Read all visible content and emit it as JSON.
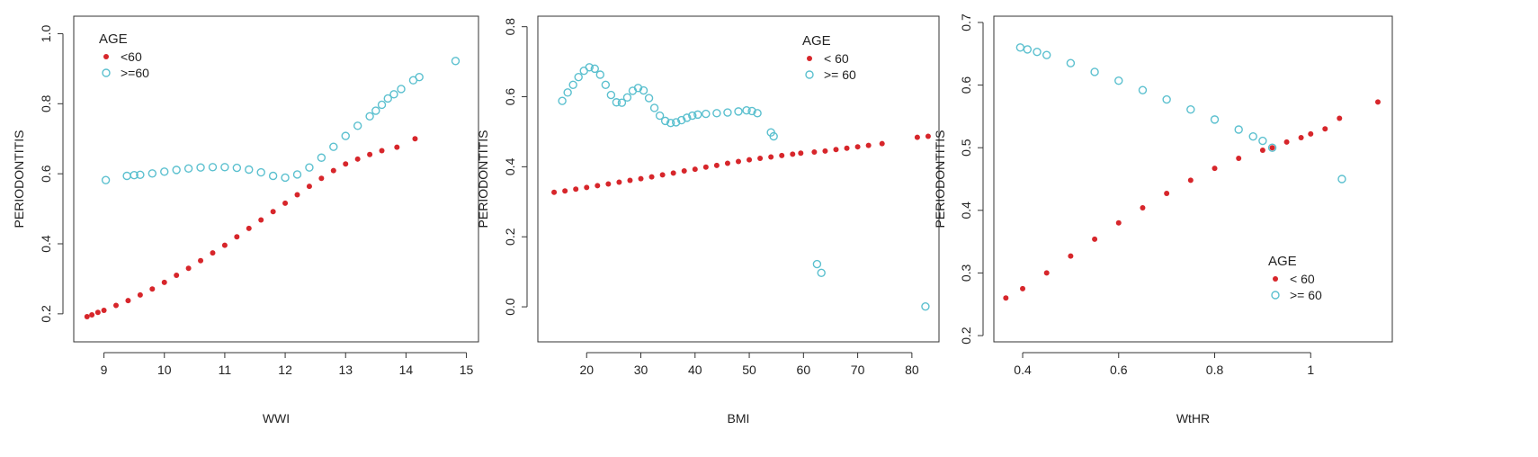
{
  "colors": {
    "under_60": "#d7262b",
    "over_60": "#5bc0cf",
    "axis": "#333333"
  },
  "chart_data": [
    {
      "type": "scatter",
      "xlabel": "WWI",
      "ylabel": "PERIODONTITIS",
      "xlim": [
        8.5,
        15.2
      ],
      "ylim": [
        0.12,
        1.05
      ],
      "xticks": [
        9,
        10,
        11,
        12,
        13,
        14,
        15
      ],
      "yticks": [
        0.2,
        0.4,
        0.6,
        0.8,
        1.0
      ],
      "ytick_labels": [
        "0.2",
        "0.4",
        "0.6",
        "0.8",
        "1.0"
      ],
      "legend": {
        "title": "AGE",
        "position": "top-left",
        "entries": [
          {
            "label": "<60",
            "marker": "filled",
            "series": 0
          },
          {
            "label": ">=60",
            "marker": "open",
            "series": 1
          }
        ]
      },
      "series": [
        {
          "marker": "filled",
          "color": "#d7262b",
          "points": [
            [
              8.72,
              0.192
            ],
            [
              8.8,
              0.197
            ],
            [
              8.9,
              0.204
            ],
            [
              9.0,
              0.21
            ],
            [
              9.2,
              0.224
            ],
            [
              9.4,
              0.238
            ],
            [
              9.6,
              0.254
            ],
            [
              9.8,
              0.271
            ],
            [
              10.0,
              0.29
            ],
            [
              10.2,
              0.31
            ],
            [
              10.4,
              0.33
            ],
            [
              10.6,
              0.352
            ],
            [
              10.8,
              0.374
            ],
            [
              11.0,
              0.396
            ],
            [
              11.2,
              0.42
            ],
            [
              11.4,
              0.444
            ],
            [
              11.6,
              0.468
            ],
            [
              11.8,
              0.492
            ],
            [
              12.0,
              0.516
            ],
            [
              12.2,
              0.54
            ],
            [
              12.4,
              0.564
            ],
            [
              12.6,
              0.587
            ],
            [
              12.8,
              0.609
            ],
            [
              13.0,
              0.628
            ],
            [
              13.2,
              0.642
            ],
            [
              13.4,
              0.655
            ],
            [
              13.6,
              0.666
            ],
            [
              13.85,
              0.676
            ],
            [
              14.15,
              0.7
            ]
          ]
        },
        {
          "marker": "open",
          "color": "#5bc0cf",
          "points": [
            [
              9.03,
              0.582
            ],
            [
              9.38,
              0.594
            ],
            [
              9.5,
              0.596
            ],
            [
              9.6,
              0.597
            ],
            [
              9.8,
              0.601
            ],
            [
              10.0,
              0.606
            ],
            [
              10.2,
              0.611
            ],
            [
              10.4,
              0.615
            ],
            [
              10.6,
              0.618
            ],
            [
              10.8,
              0.619
            ],
            [
              11.0,
              0.619
            ],
            [
              11.2,
              0.617
            ],
            [
              11.4,
              0.612
            ],
            [
              11.6,
              0.604
            ],
            [
              11.8,
              0.594
            ],
            [
              12.0,
              0.589
            ],
            [
              12.2,
              0.598
            ],
            [
              12.4,
              0.618
            ],
            [
              12.6,
              0.646
            ],
            [
              12.8,
              0.677
            ],
            [
              13.0,
              0.708
            ],
            [
              13.2,
              0.737
            ],
            [
              13.4,
              0.764
            ],
            [
              13.5,
              0.78
            ],
            [
              13.6,
              0.797
            ],
            [
              13.7,
              0.815
            ],
            [
              13.8,
              0.827
            ],
            [
              13.92,
              0.842
            ],
            [
              14.12,
              0.867
            ],
            [
              14.22,
              0.876
            ],
            [
              14.82,
              0.922
            ]
          ]
        }
      ]
    },
    {
      "type": "scatter",
      "xlabel": "BMI",
      "ylabel": "PERIODONTITIS",
      "xlim": [
        11,
        85
      ],
      "ylim": [
        -0.1,
        0.83
      ],
      "xticks": [
        20,
        30,
        40,
        50,
        60,
        70,
        80
      ],
      "yticks": [
        0.0,
        0.2,
        0.4,
        0.6,
        0.8
      ],
      "ytick_labels": [
        "0.0",
        "0.2",
        "0.4",
        "0.6",
        "0.8"
      ],
      "legend": {
        "title": "AGE",
        "position": "top-right",
        "entries": [
          {
            "label": "< 60",
            "marker": "filled",
            "series": 0
          },
          {
            "label": ">= 60",
            "marker": "open",
            "series": 1
          }
        ]
      },
      "series": [
        {
          "marker": "filled",
          "color": "#d7262b",
          "points": [
            [
              14,
              0.327
            ],
            [
              16,
              0.331
            ],
            [
              18,
              0.336
            ],
            [
              20,
              0.341
            ],
            [
              22,
              0.346
            ],
            [
              24,
              0.351
            ],
            [
              26,
              0.356
            ],
            [
              28,
              0.361
            ],
            [
              30,
              0.366
            ],
            [
              32,
              0.371
            ],
            [
              34,
              0.377
            ],
            [
              36,
              0.382
            ],
            [
              38,
              0.388
            ],
            [
              40,
              0.393
            ],
            [
              42,
              0.399
            ],
            [
              44,
              0.404
            ],
            [
              46,
              0.41
            ],
            [
              48,
              0.415
            ],
            [
              50,
              0.42
            ],
            [
              52,
              0.424
            ],
            [
              54,
              0.428
            ],
            [
              56,
              0.432
            ],
            [
              58,
              0.436
            ],
            [
              59.5,
              0.439
            ],
            [
              62,
              0.442
            ],
            [
              64,
              0.445
            ],
            [
              66,
              0.449
            ],
            [
              68,
              0.453
            ],
            [
              70,
              0.457
            ],
            [
              72,
              0.461
            ],
            [
              74.5,
              0.466
            ],
            [
              81,
              0.484
            ],
            [
              83,
              0.487
            ]
          ]
        },
        {
          "marker": "open",
          "color": "#5bc0cf",
          "points": [
            [
              15.5,
              0.588
            ],
            [
              16.5,
              0.612
            ],
            [
              17.5,
              0.634
            ],
            [
              18.5,
              0.656
            ],
            [
              19.5,
              0.674
            ],
            [
              20.5,
              0.684
            ],
            [
              21.5,
              0.68
            ],
            [
              22.5,
              0.663
            ],
            [
              23.5,
              0.634
            ],
            [
              24.5,
              0.605
            ],
            [
              25.5,
              0.584
            ],
            [
              26.5,
              0.583
            ],
            [
              27.5,
              0.598
            ],
            [
              28.5,
              0.617
            ],
            [
              29.5,
              0.625
            ],
            [
              30.5,
              0.618
            ],
            [
              31.5,
              0.596
            ],
            [
              32.5,
              0.568
            ],
            [
              33.5,
              0.546
            ],
            [
              34.5,
              0.531
            ],
            [
              35.5,
              0.525
            ],
            [
              36.5,
              0.527
            ],
            [
              37.5,
              0.533
            ],
            [
              38.5,
              0.54
            ],
            [
              39.5,
              0.546
            ],
            [
              40.5,
              0.549
            ],
            [
              42,
              0.551
            ],
            [
              44,
              0.553
            ],
            [
              46,
              0.555
            ],
            [
              48,
              0.558
            ],
            [
              49.5,
              0.561
            ],
            [
              50.5,
              0.559
            ],
            [
              51.5,
              0.553
            ],
            [
              54,
              0.498
            ],
            [
              54.5,
              0.487
            ],
            [
              62.5,
              0.122
            ],
            [
              63.3,
              0.097
            ],
            [
              82.5,
              0.001
            ]
          ]
        }
      ]
    },
    {
      "type": "scatter",
      "xlabel": "WtHR",
      "ylabel": "PERIODONTITIS",
      "xlim": [
        0.34,
        1.17
      ],
      "ylim": [
        0.19,
        0.71
      ],
      "xticks": [
        0.4,
        0.6,
        0.8,
        1.0
      ],
      "yticks": [
        0.2,
        0.3,
        0.4,
        0.5,
        0.6,
        0.7
      ],
      "ytick_labels": [
        "0.2",
        "0.3",
        "0.4",
        "0.5",
        "0.6",
        "0.7"
      ],
      "legend": {
        "title": "AGE",
        "position": "bottom-right",
        "entries": [
          {
            "label": "< 60",
            "marker": "filled",
            "series": 0
          },
          {
            "label": ">= 60",
            "marker": "open",
            "series": 1
          }
        ]
      },
      "series": [
        {
          "marker": "filled",
          "color": "#d7262b",
          "points": [
            [
              0.365,
              0.26
            ],
            [
              0.4,
              0.275
            ],
            [
              0.45,
              0.3
            ],
            [
              0.5,
              0.327
            ],
            [
              0.55,
              0.354
            ],
            [
              0.6,
              0.38
            ],
            [
              0.65,
              0.404
            ],
            [
              0.7,
              0.427
            ],
            [
              0.75,
              0.448
            ],
            [
              0.8,
              0.467
            ],
            [
              0.85,
              0.483
            ],
            [
              0.9,
              0.496
            ],
            [
              0.92,
              0.5
            ],
            [
              0.95,
              0.509
            ],
            [
              0.98,
              0.516
            ],
            [
              1.0,
              0.522
            ],
            [
              1.03,
              0.53
            ],
            [
              1.06,
              0.547
            ],
            [
              1.14,
              0.573
            ]
          ]
        },
        {
          "marker": "open",
          "color": "#5bc0cf",
          "points": [
            [
              0.395,
              0.66
            ],
            [
              0.41,
              0.657
            ],
            [
              0.43,
              0.653
            ],
            [
              0.45,
              0.648
            ],
            [
              0.5,
              0.635
            ],
            [
              0.55,
              0.621
            ],
            [
              0.6,
              0.607
            ],
            [
              0.65,
              0.592
            ],
            [
              0.7,
              0.577
            ],
            [
              0.75,
              0.561
            ],
            [
              0.8,
              0.545
            ],
            [
              0.85,
              0.529
            ],
            [
              0.88,
              0.518
            ],
            [
              0.9,
              0.511
            ],
            [
              0.92,
              0.5
            ],
            [
              1.065,
              0.45
            ]
          ]
        }
      ]
    }
  ]
}
